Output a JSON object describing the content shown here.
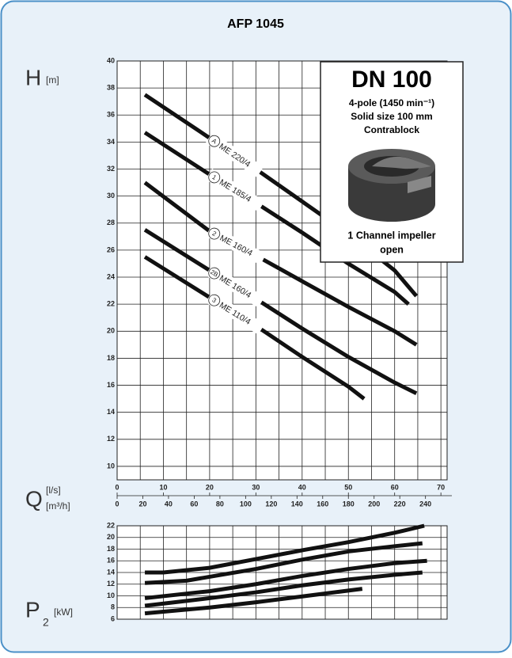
{
  "chart_data": [
    {
      "type": "line",
      "title": "AFP 1045",
      "y_label": "H",
      "y_unit": "[m]",
      "x_label": "Q",
      "x_unit": "[l/s]",
      "x2_unit": "[m³/h]",
      "xlim": [
        0,
        71
      ],
      "xticks": [
        0,
        10,
        20,
        30,
        40,
        50,
        60,
        70
      ],
      "x2lim": [
        0,
        255.6
      ],
      "x2ticks": [
        0,
        20,
        40,
        60,
        80,
        100,
        120,
        140,
        160,
        180,
        200,
        220,
        240
      ],
      "x_gridlines": [
        0,
        5,
        10,
        15,
        20,
        25,
        30,
        35,
        40,
        45,
        50,
        55,
        60,
        65,
        70
      ],
      "ylim": [
        9,
        40
      ],
      "yticks": [
        10,
        12,
        14,
        16,
        18,
        20,
        22,
        24,
        26,
        28,
        30,
        32,
        34,
        36,
        38,
        40
      ],
      "grid": true,
      "info_box": {
        "heading": "DN 100",
        "lines": [
          "4-pole (1450 min⁻¹)",
          "Solid size 100 mm",
          "Contrablock"
        ],
        "footer": [
          "1 Channel impeller",
          "open"
        ]
      },
      "series": [
        {
          "name": "ME 220/4",
          "marker": "A",
          "color": "#111111",
          "x": [
            6,
            20,
            30,
            40,
            50,
            60,
            64.7
          ],
          "values": [
            37.5,
            34.3,
            32.0,
            29.6,
            27.2,
            24.5,
            22.6
          ]
        },
        {
          "name": "ME 185/4",
          "marker": "1",
          "color": "#111111",
          "x": [
            6,
            20,
            30,
            40,
            50,
            60,
            63
          ],
          "values": [
            34.7,
            31.6,
            29.5,
            27.3,
            25.0,
            22.9,
            22.0
          ]
        },
        {
          "name": "ME 160/4",
          "marker": "2",
          "color": "#111111",
          "x": [
            6,
            20,
            30,
            40,
            50,
            60,
            64.7
          ],
          "values": [
            31.0,
            27.4,
            25.6,
            23.7,
            21.8,
            20.0,
            19.0
          ]
        },
        {
          "name": "ME 160/4",
          "marker": "2B",
          "color": "#111111",
          "x": [
            6,
            20,
            30,
            40,
            50,
            60,
            64.7
          ],
          "values": [
            27.5,
            24.5,
            22.4,
            20.2,
            18.1,
            16.2,
            15.4
          ]
        },
        {
          "name": "ME 110/4",
          "marker": "3",
          "color": "#111111",
          "x": [
            6,
            20,
            30,
            40,
            50,
            53.4
          ],
          "values": [
            25.5,
            22.5,
            20.4,
            18.1,
            15.9,
            15.0
          ]
        }
      ]
    },
    {
      "type": "line",
      "y_label": "P",
      "y_sub": "2",
      "y_unit": "[kW]",
      "xlim": [
        0,
        71
      ],
      "x_gridlines": [
        0,
        5,
        10,
        15,
        20,
        25,
        30,
        35,
        40,
        45,
        50,
        55,
        60,
        65,
        70
      ],
      "ylim": [
        6,
        22
      ],
      "yticks": [
        6,
        8,
        10,
        12,
        14,
        16,
        18,
        20,
        22
      ],
      "grid": true,
      "series": [
        {
          "color": "#111111",
          "x": [
            6,
            10,
            20,
            30,
            40,
            50,
            60,
            66.4
          ],
          "values": [
            14.0,
            14.0,
            14.8,
            16.3,
            17.8,
            19.2,
            20.8,
            22.0
          ]
        },
        {
          "color": "#111111",
          "x": [
            6,
            15,
            30,
            40,
            50,
            60,
            66
          ],
          "values": [
            12.2,
            12.6,
            14.6,
            16.2,
            17.6,
            18.5,
            19.0
          ]
        },
        {
          "color": "#111111",
          "x": [
            6,
            20,
            30,
            40,
            50,
            60,
            67
          ],
          "values": [
            9.6,
            10.8,
            12.0,
            13.4,
            14.6,
            15.6,
            16.0
          ]
        },
        {
          "color": "#111111",
          "x": [
            6,
            20,
            30,
            40,
            50,
            60,
            66
          ],
          "values": [
            8.3,
            9.6,
            10.6,
            11.8,
            12.8,
            13.6,
            14.0
          ]
        },
        {
          "color": "#111111",
          "x": [
            6,
            20,
            30,
            40,
            53
          ],
          "values": [
            7.0,
            8.0,
            8.9,
            9.9,
            11.2
          ]
        }
      ]
    }
  ]
}
